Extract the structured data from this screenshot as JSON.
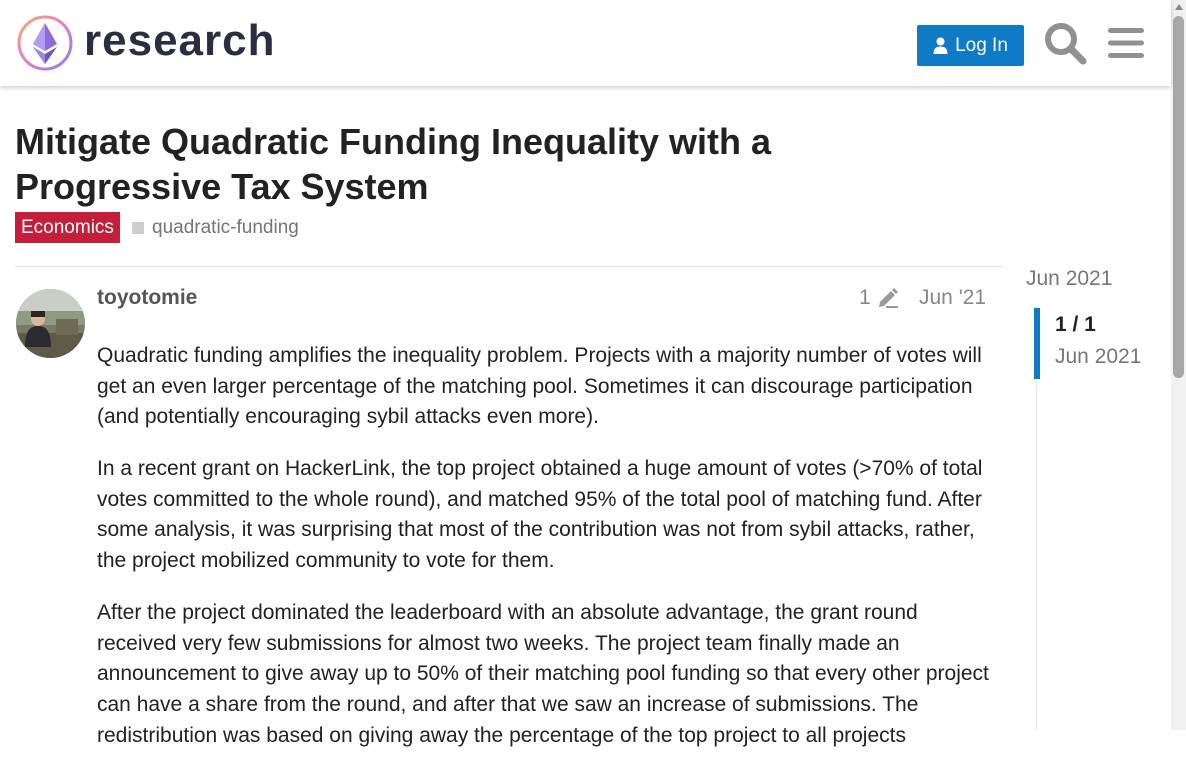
{
  "header": {
    "logo_text": "research",
    "login_label": "Log In",
    "icons": {
      "search": "search-icon",
      "menu": "hamburger-menu-icon",
      "user": "user-icon"
    }
  },
  "topic": {
    "title": "Mitigate Quadratic Funding Inequality with a Progressive Tax System",
    "category": "Economics",
    "tag": "quadratic-funding"
  },
  "post": {
    "username": "toyotomie",
    "edit_count": "1",
    "date": "Jun '21",
    "paragraphs": [
      "Quadratic funding amplifies the inequality problem. Projects with a majority number of votes will get an even larger percentage of the matching pool. Sometimes it can discourage participation (and potentially encouraging sybil attacks even more).",
      "In a recent grant on HackerLink, the top project obtained a huge amount of votes (>70% of total votes committed to the whole round), and matched 95% of the total pool of matching fund. After some analysis, it was surprising that most of the contribution was not from sybil attacks, rather, the project mobilized community to vote for them.",
      "After the project dominated the leaderboard with an absolute advantage, the grant round received very few submissions for almost two weeks. The project team finally made an announcement to give away up to 50% of their matching pool funding so that every other project can have a share from the round, and after that we saw an increase of submissions. The redistribution was based on giving away the percentage of the top project to all projects"
    ]
  },
  "timeline": {
    "start_date": "Jun 2021",
    "position": "1 / 1",
    "position_date": "Jun 2021"
  },
  "colors": {
    "accent": "#0f7ac6",
    "category": "#c41e3a",
    "text": "#222222",
    "muted": "#888888"
  }
}
